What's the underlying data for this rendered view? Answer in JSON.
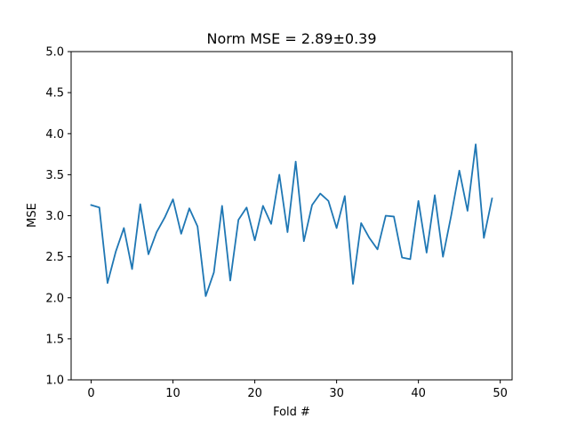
{
  "chart_data": {
    "type": "line",
    "title": "Norm MSE = 2.89±0.39",
    "xlabel": "Fold #",
    "ylabel": "MSE",
    "xlim": [
      -2.45,
      51.45
    ],
    "ylim": [
      1.0,
      5.0
    ],
    "xticks": [
      0,
      10,
      20,
      30,
      40,
      50
    ],
    "yticks": [
      1.0,
      1.5,
      2.0,
      2.5,
      3.0,
      3.5,
      4.0,
      4.5,
      5.0
    ],
    "xtick_labels": [
      "0",
      "10",
      "20",
      "30",
      "40",
      "50"
    ],
    "ytick_labels": [
      "1.0",
      "1.5",
      "2.0",
      "2.5",
      "3.0",
      "3.5",
      "4.0",
      "4.5",
      "5.0"
    ],
    "grid": false,
    "series": [
      {
        "color": "#1f77b4",
        "x": [
          0,
          1,
          2,
          3,
          4,
          5,
          6,
          7,
          8,
          9,
          10,
          11,
          12,
          13,
          14,
          15,
          16,
          17,
          18,
          19,
          20,
          21,
          22,
          23,
          24,
          25,
          26,
          27,
          28,
          29,
          30,
          31,
          32,
          33,
          34,
          35,
          36,
          37,
          38,
          39,
          40,
          41,
          42,
          43,
          44,
          45,
          46,
          47,
          48,
          49
        ],
        "values": [
          3.13,
          3.1,
          2.18,
          2.56,
          2.85,
          2.35,
          3.14,
          2.53,
          2.8,
          2.98,
          3.2,
          2.78,
          3.09,
          2.87,
          2.02,
          2.31,
          3.12,
          2.21,
          2.95,
          3.1,
          2.7,
          3.12,
          2.9,
          3.5,
          2.8,
          3.66,
          2.69,
          3.13,
          3.27,
          3.18,
          2.85,
          3.24,
          2.17,
          2.91,
          2.73,
          2.59,
          3.0,
          2.99,
          2.49,
          2.47,
          3.18,
          2.55,
          3.25,
          2.5,
          3.0,
          3.55,
          3.06,
          3.87,
          2.73,
          3.21
        ]
      }
    ]
  }
}
